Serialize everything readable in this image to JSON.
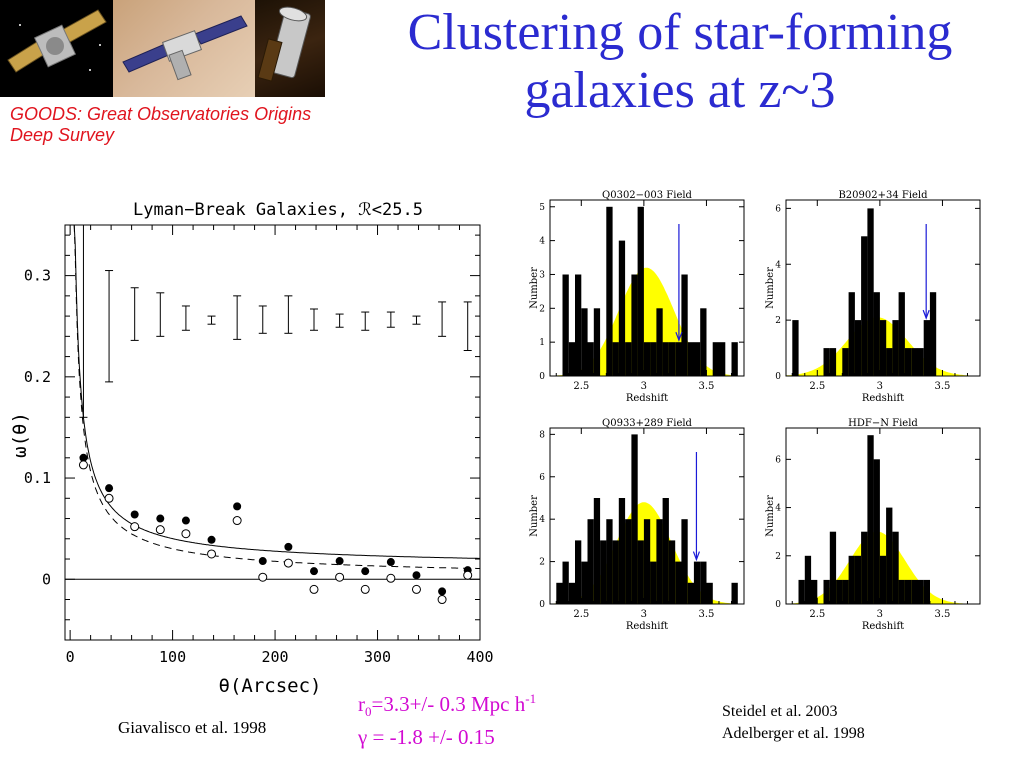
{
  "slide": {
    "title": "Clustering of star-forming galaxies at z~3",
    "subtitle": "GOODS: Great Observatories Origins Deep Survey",
    "citation_left": "Giavalisco et al. 1998",
    "citation_right_1": "Steidel et al. 2003",
    "citation_right_2": "Adelberger et al. 1998",
    "r0_symbol": "r",
    "r0_sub": "0",
    "r0_value": "=3.3+/- 0.3 Mpc h",
    "r0_sup": "-1",
    "gamma_line": "γ = -1.8 +/- 0.15",
    "colors": {
      "title": "#2b2bd0",
      "subtitle": "#e0141e",
      "params": "#d20ad2"
    }
  },
  "chart_data": [
    {
      "type": "scatter",
      "title": "Lyman−Break Galaxies, ℛ<25.5",
      "xlabel": "θ(Arcsec)",
      "ylabel": "ω(θ)",
      "xlim": [
        -5,
        400
      ],
      "ylim": [
        -0.06,
        0.35
      ],
      "xticks": [
        "0",
        "100",
        "200",
        "300",
        "400"
      ],
      "yticks": [
        "0",
        "0.1",
        "0.2",
        "0.3"
      ],
      "series": [
        {
          "marker": "filled-circle",
          "x": [
            13,
            38,
            63,
            88,
            113,
            138,
            163,
            188,
            213,
            238,
            263,
            288,
            313,
            338,
            363,
            388
          ],
          "y": [
            0.12,
            0.09,
            0.064,
            0.06,
            0.058,
            0.039,
            0.072,
            0.018,
            0.032,
            0.008,
            0.018,
            0.008,
            0.017,
            0.004,
            -0.012,
            0.009
          ]
        },
        {
          "marker": "open-circle",
          "x": [
            13,
            38,
            63,
            88,
            113,
            138,
            163,
            188,
            213,
            238,
            263,
            288,
            313,
            338,
            363,
            388
          ],
          "y": [
            0.113,
            0.08,
            0.052,
            0.049,
            0.045,
            0.025,
            0.058,
            0.002,
            0.016,
            -0.01,
            0.002,
            -0.01,
            0.001,
            -0.01,
            -0.02,
            0.004
          ]
        }
      ],
      "error_bars": {
        "x": [
          13,
          38,
          63,
          88,
          113,
          138,
          163,
          188,
          213,
          238,
          263,
          288,
          313,
          338,
          363,
          388
        ],
        "lo": [
          0.16,
          0.195,
          0.236,
          0.24,
          0.246,
          0.252,
          0.237,
          0.243,
          0.243,
          0.246,
          0.249,
          0.246,
          0.249,
          0.252,
          0.24,
          0.226
        ],
        "hi": [
          0.35,
          0.305,
          0.288,
          0.283,
          0.27,
          0.26,
          0.28,
          0.27,
          0.28,
          0.267,
          0.262,
          0.264,
          0.264,
          0.26,
          0.274,
          0.274
        ]
      },
      "fit_lines": [
        {
          "style": "solid",
          "form": "0.011 + 1.16*theta^-0.8"
        },
        {
          "style": "dashed",
          "form": "0.001 + 1.16*theta^-0.8"
        }
      ]
    },
    {
      "type": "histogram",
      "title": "Q0302−003 Field",
      "xlabel": "Redshift",
      "ylabel": "Number",
      "xlim": [
        2.25,
        3.8
      ],
      "ylim": [
        0,
        5.2
      ],
      "xticks": [
        "2.5",
        "3",
        "3.5"
      ],
      "yticks": [
        "0",
        "1",
        "2",
        "3",
        "4",
        "5"
      ],
      "bin_start": 2.3,
      "bin_width": 0.05,
      "counts": [
        0,
        3,
        1,
        3,
        2,
        1,
        2,
        0,
        5,
        1,
        4,
        1,
        3,
        5,
        1,
        1,
        2,
        1,
        1,
        1,
        3,
        1,
        1,
        2,
        0,
        1,
        1,
        0,
        1,
        0
      ],
      "marker_z": 3.28,
      "marker_color": "#1a1ad8",
      "selection_function": {
        "center": 3.02,
        "sigma": 0.22,
        "peak": 3.2,
        "color": "#ffff00"
      }
    },
    {
      "type": "histogram",
      "title": "B20902+34 Field",
      "xlabel": "Redshift",
      "ylabel": "Number",
      "xlim": [
        2.25,
        3.8
      ],
      "ylim": [
        0,
        6.3
      ],
      "xticks": [
        "2.5",
        "3",
        "3.5"
      ],
      "yticks": [
        "0",
        "2",
        "4",
        "6"
      ],
      "bin_start": 2.3,
      "bin_width": 0.05,
      "counts": [
        2,
        0,
        0,
        0,
        0,
        1,
        1,
        0,
        1,
        3,
        2,
        5,
        6,
        3,
        2,
        1,
        2,
        3,
        1,
        1,
        1,
        2,
        3,
        0,
        0,
        0,
        0,
        0,
        0,
        0
      ],
      "marker_z": 3.37,
      "marker_color": "#1a1ad8",
      "selection_function": {
        "center": 2.98,
        "sigma": 0.24,
        "peak": 2.1,
        "color": "#ffff00"
      }
    },
    {
      "type": "histogram",
      "title": "Q0933+289 Field",
      "xlabel": "Redshift",
      "ylabel": "Number",
      "xlim": [
        2.25,
        3.8
      ],
      "ylim": [
        0,
        8.3
      ],
      "xticks": [
        "2.5",
        "3",
        "3.5"
      ],
      "yticks": [
        "0",
        "2",
        "4",
        "6",
        "8"
      ],
      "bin_start": 2.3,
      "bin_width": 0.05,
      "counts": [
        1,
        2,
        1,
        3,
        2,
        4,
        5,
        3,
        4,
        3,
        5,
        4,
        8,
        3,
        4,
        2,
        4,
        5,
        3,
        2,
        4,
        1,
        2,
        2,
        1,
        0,
        0,
        0,
        1,
        0
      ],
      "marker_z": 3.42,
      "marker_color": "#1a1ad8",
      "selection_function": {
        "center": 3.0,
        "sigma": 0.22,
        "peak": 4.8,
        "color": "#ffff00"
      }
    },
    {
      "type": "histogram",
      "title": "HDF−N Field",
      "xlabel": "Redshift",
      "ylabel": "Number",
      "xlim": [
        2.25,
        3.8
      ],
      "ylim": [
        0,
        7.3
      ],
      "xticks": [
        "2.5",
        "3",
        "3.5"
      ],
      "yticks": [
        "0",
        "2",
        "4",
        "6"
      ],
      "bin_start": 2.3,
      "bin_width": 0.05,
      "counts": [
        0,
        1,
        2,
        1,
        0,
        1,
        3,
        1,
        1,
        2,
        2,
        3,
        7,
        6,
        2,
        4,
        3,
        1,
        1,
        1,
        1,
        1,
        0,
        0,
        0,
        0,
        0,
        0,
        0,
        0
      ],
      "marker_z": null,
      "selection_function": {
        "center": 2.98,
        "sigma": 0.22,
        "peak": 3.0,
        "color": "#ffff00"
      }
    }
  ]
}
